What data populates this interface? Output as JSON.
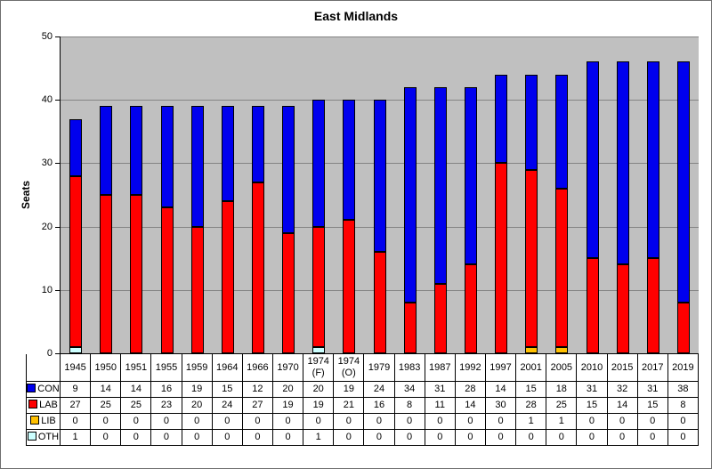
{
  "frame": {
    "background": "#FFFFFF",
    "border_color": "#6E6E6E"
  },
  "chart_data": {
    "type": "bar",
    "stacked": true,
    "title": "East Midlands",
    "xlabel": "",
    "ylabel": "Seats",
    "ylim": [
      0,
      50
    ],
    "yticks": [
      0,
      10,
      20,
      30,
      40,
      50
    ],
    "grid": true,
    "plot_background": "#C0C0C0",
    "gridline_color": "#848484",
    "bar_border_color": "#000000",
    "legend_position": "table-left",
    "categories": [
      "1945",
      "1950",
      "1951",
      "1955",
      "1959",
      "1964",
      "1966",
      "1970",
      "1974 (F)",
      "1974 (O)",
      "1979",
      "1983",
      "1987",
      "1992",
      "1997",
      "2001",
      "2005",
      "2010",
      "2015",
      "2017",
      "2019"
    ],
    "series": [
      {
        "name": "CON",
        "color": "#0000EE",
        "values": [
          9,
          14,
          14,
          16,
          19,
          15,
          12,
          20,
          20,
          19,
          24,
          34,
          31,
          28,
          14,
          15,
          18,
          31,
          32,
          31,
          38
        ]
      },
      {
        "name": "LAB",
        "color": "#FF0000",
        "values": [
          27,
          25,
          25,
          23,
          20,
          24,
          27,
          19,
          19,
          21,
          16,
          8,
          11,
          14,
          30,
          28,
          25,
          15,
          14,
          15,
          8
        ]
      },
      {
        "name": "LIB",
        "color": "#FFC000",
        "values": [
          0,
          0,
          0,
          0,
          0,
          0,
          0,
          0,
          0,
          0,
          0,
          0,
          0,
          0,
          0,
          1,
          1,
          0,
          0,
          0,
          0
        ]
      },
      {
        "name": "OTH",
        "color": "#CCFFFF",
        "values": [
          1,
          0,
          0,
          0,
          0,
          0,
          0,
          0,
          1,
          0,
          0,
          0,
          0,
          0,
          0,
          0,
          0,
          0,
          0,
          0,
          0
        ]
      }
    ],
    "stack_order_bottom_to_top": [
      "OTH",
      "LIB",
      "LAB",
      "CON"
    ]
  }
}
